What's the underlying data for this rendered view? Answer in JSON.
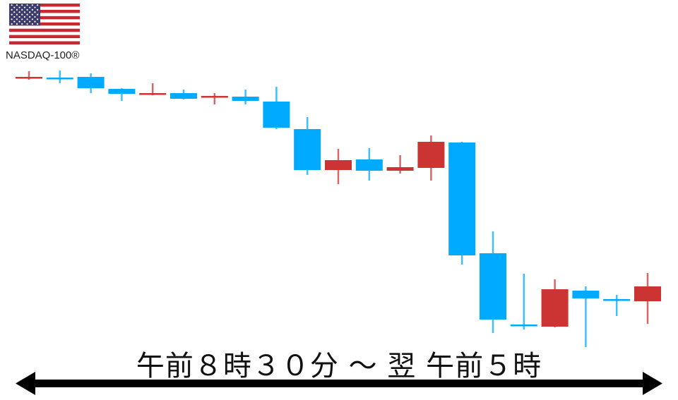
{
  "header": {
    "index_name": "NASDAQ-100®",
    "flag_icon": "us-flag-icon"
  },
  "period_label": "午前８時３０分 ～ 翌 午前５時",
  "colors": {
    "up": "#cc3333",
    "down": "#00aaff",
    "arrow": "#000000"
  },
  "chart_data": {
    "type": "candlestick",
    "title": "",
    "axes_shown": false,
    "grid": false,
    "up_color": "#cc3333",
    "down_color": "#00aaff",
    "candles": [
      {
        "open": 389,
        "high": 399,
        "low": 387,
        "close": 391
      },
      {
        "open": 390,
        "high": 400,
        "low": 382,
        "close": 389
      },
      {
        "open": 391,
        "high": 396,
        "low": 368,
        "close": 375
      },
      {
        "open": 374,
        "high": 375,
        "low": 357,
        "close": 367
      },
      {
        "open": 367,
        "high": 382,
        "low": 365,
        "close": 368
      },
      {
        "open": 368,
        "high": 373,
        "low": 359,
        "close": 360
      },
      {
        "open": 362,
        "high": 368,
        "low": 352,
        "close": 364
      },
      {
        "open": 363,
        "high": 373,
        "low": 352,
        "close": 357
      },
      {
        "open": 356,
        "high": 377,
        "low": 317,
        "close": 319
      },
      {
        "open": 317,
        "high": 334,
        "low": 252,
        "close": 259
      },
      {
        "open": 259,
        "high": 289,
        "low": 239,
        "close": 273
      },
      {
        "open": 274,
        "high": 290,
        "low": 244,
        "close": 258
      },
      {
        "open": 258,
        "high": 280,
        "low": 254,
        "close": 263
      },
      {
        "open": 262,
        "high": 308,
        "low": 244,
        "close": 299
      },
      {
        "open": 298,
        "high": 299,
        "low": 125,
        "close": 138
      },
      {
        "open": 141,
        "high": 172,
        "low": 28,
        "close": 47
      },
      {
        "open": 40,
        "high": 112,
        "low": 33,
        "close": 39
      },
      {
        "open": 37,
        "high": 104,
        "low": 36,
        "close": 90
      },
      {
        "open": 88,
        "high": 94,
        "low": 8,
        "close": 77
      },
      {
        "open": 76,
        "high": 82,
        "low": 52,
        "close": 74
      },
      {
        "open": 73,
        "high": 113,
        "low": 41,
        "close": 94
      }
    ]
  }
}
